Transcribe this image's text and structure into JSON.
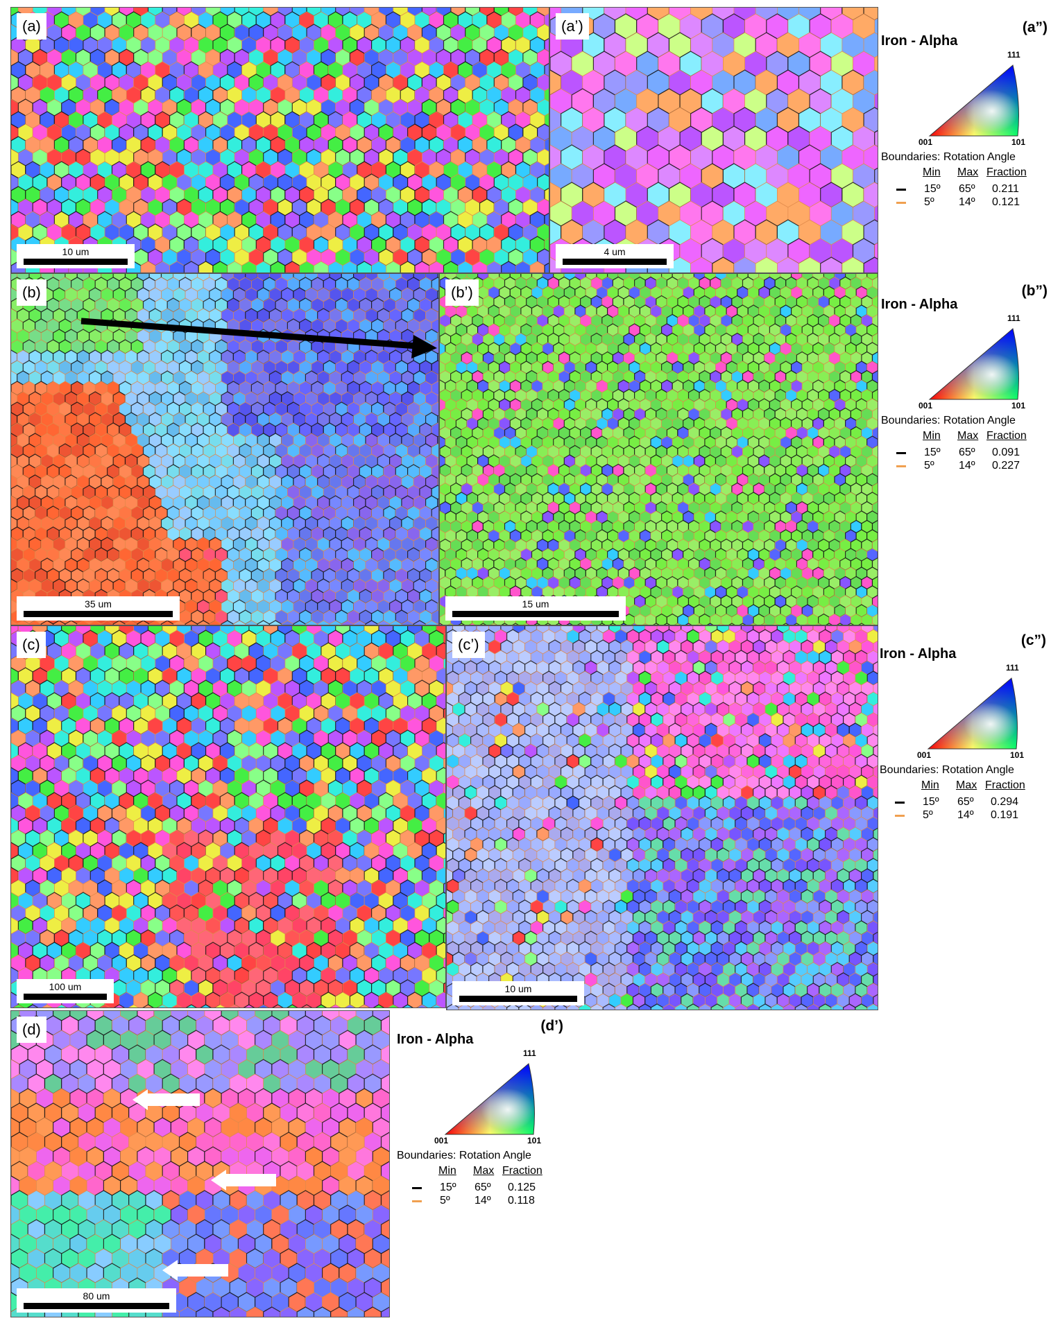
{
  "panels": [
    {
      "label": "(a)",
      "scale_bar": "10 um"
    },
    {
      "label": "(a’)",
      "scale_bar": "4 um"
    },
    {
      "label": "(b)",
      "scale_bar": "35 um"
    },
    {
      "label": "(b’)",
      "scale_bar": "15 um"
    },
    {
      "label": "(c)",
      "scale_bar": "100 um"
    },
    {
      "label": "(c’)",
      "scale_bar": "10 um"
    },
    {
      "label": "(d)",
      "scale_bar": "80 um"
    }
  ],
  "legends": [
    {
      "label": "(a”)",
      "title": "Iron - Alpha",
      "vertices": [
        "111",
        "001",
        "101"
      ],
      "boundaries_title": "Boundaries: Rotation Angle",
      "columns": [
        "Min",
        "Max",
        "Fraction"
      ],
      "rows": [
        [
          "15º",
          "65º",
          0.211
        ],
        [
          "5º",
          "14º",
          0.121
        ]
      ]
    },
    {
      "label": "(b”)",
      "title": "Iron - Alpha",
      "vertices": [
        "111",
        "001",
        "101"
      ],
      "boundaries_title": "Boundaries: Rotation Angle",
      "columns": [
        "Min",
        "Max",
        "Fraction"
      ],
      "rows": [
        [
          "15º",
          "65º",
          0.091
        ],
        [
          "5º",
          "14º",
          0.227
        ]
      ]
    },
    {
      "label": "(c”)",
      "title": "Iron - Alpha",
      "vertices": [
        "111",
        "001",
        "101"
      ],
      "boundaries_title": "Boundaries: Rotation Angle",
      "columns": [
        "Min",
        "Max",
        "Fraction"
      ],
      "rows": [
        [
          "15º",
          "65º",
          0.294
        ],
        [
          "5º",
          "14º",
          0.191
        ]
      ]
    },
    {
      "label": "(d’)",
      "title": "Iron - Alpha",
      "vertices": [
        "111",
        "001",
        "101"
      ],
      "boundaries_title": "Boundaries: Rotation Angle",
      "columns": [
        "Min",
        "Max",
        "Fraction"
      ],
      "rows": [
        [
          "15º",
          "65º",
          0.125
        ],
        [
          "5º",
          "14º",
          0.118
        ]
      ]
    }
  ]
}
